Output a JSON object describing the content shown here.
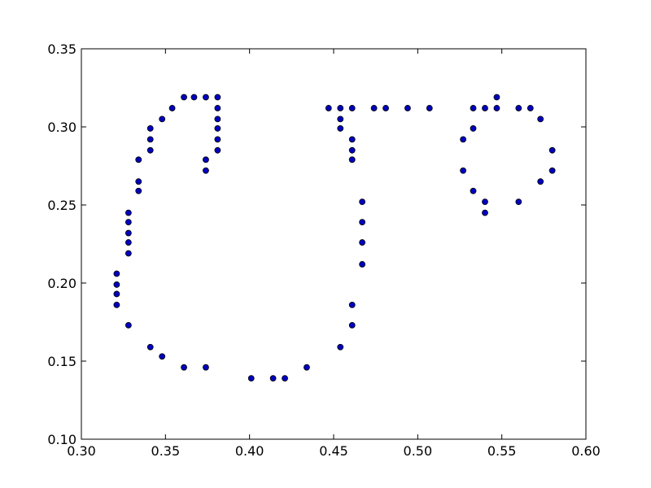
{
  "chart_data": {
    "type": "scatter",
    "title": "",
    "xlabel": "",
    "ylabel": "",
    "xlim": [
      0.3,
      0.6
    ],
    "ylim": [
      0.1,
      0.35
    ],
    "grid": false,
    "x_ticks": [
      "0.30",
      "0.35",
      "0.40",
      "0.45",
      "0.50",
      "0.55",
      "0.60"
    ],
    "y_ticks": [
      "0.10",
      "0.15",
      "0.20",
      "0.25",
      "0.30",
      "0.35"
    ],
    "marker_color": "#0000bf",
    "marker_edge_color": "#000000",
    "series": [
      {
        "x": [
          0.361,
          0.367,
          0.374,
          0.381,
          0.381,
          0.381,
          0.381,
          0.381,
          0.381,
          0.374,
          0.374,
          0.354,
          0.348,
          0.341,
          0.341,
          0.341,
          0.334,
          0.334,
          0.334,
          0.328,
          0.328,
          0.328,
          0.328,
          0.328,
          0.321,
          0.321,
          0.321,
          0.321,
          0.328,
          0.341,
          0.348,
          0.361,
          0.374,
          0.401,
          0.414,
          0.421,
          0.434,
          0.454,
          0.461,
          0.461,
          0.467,
          0.467,
          0.467,
          0.467,
          0.461,
          0.461,
          0.461,
          0.454,
          0.454,
          0.447,
          0.454,
          0.461,
          0.474,
          0.481,
          0.494,
          0.507,
          0.533,
          0.54,
          0.547,
          0.547,
          0.56,
          0.567,
          0.573,
          0.58,
          0.58,
          0.573,
          0.56,
          0.54,
          0.54,
          0.533,
          0.527,
          0.527,
          0.533
        ],
        "y": [
          0.319,
          0.319,
          0.319,
          0.319,
          0.312,
          0.305,
          0.299,
          0.292,
          0.285,
          0.279,
          0.272,
          0.312,
          0.305,
          0.299,
          0.292,
          0.285,
          0.279,
          0.265,
          0.259,
          0.245,
          0.239,
          0.232,
          0.226,
          0.219,
          0.206,
          0.199,
          0.193,
          0.186,
          0.173,
          0.159,
          0.153,
          0.146,
          0.146,
          0.139,
          0.139,
          0.139,
          0.146,
          0.159,
          0.173,
          0.186,
          0.212,
          0.226,
          0.239,
          0.252,
          0.279,
          0.285,
          0.292,
          0.299,
          0.305,
          0.312,
          0.312,
          0.312,
          0.312,
          0.312,
          0.312,
          0.312,
          0.312,
          0.312,
          0.312,
          0.319,
          0.312,
          0.312,
          0.305,
          0.285,
          0.272,
          0.265,
          0.252,
          0.252,
          0.245,
          0.259,
          0.272,
          0.292,
          0.299
        ]
      }
    ]
  }
}
